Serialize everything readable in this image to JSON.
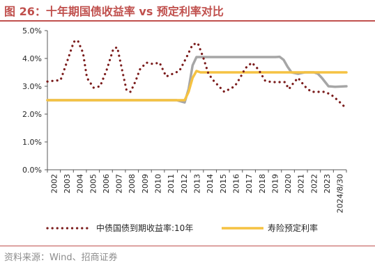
{
  "title": "图 26：十年期国债收益率 vs 预定利率对比",
  "source": "资料来源：Wind、招商证券",
  "chart_data": {
    "type": "line",
    "ylim": [
      0,
      5
    ],
    "yticks": [
      "0.0%",
      "1.0%",
      "2.0%",
      "3.0%",
      "4.0%",
      "5.0%"
    ],
    "xlim": [
      2002,
      2024.66
    ],
    "xticks": [
      "2002",
      "2003",
      "2004",
      "2005",
      "2006",
      "2007",
      "2008",
      "2009",
      "2010",
      "2011",
      "2012",
      "2013",
      "2014",
      "2015",
      "2016",
      "2017",
      "2018",
      "2019",
      "2020",
      "2021",
      "2022",
      "2023",
      "2024/8/30"
    ],
    "grid": false,
    "legend_position": "bottom",
    "colors": {
      "bond": "#7b1c1c",
      "rate": "#f5c242",
      "third": "#a6a6a6"
    },
    "series": [
      {
        "name": "中债国债到期收益率:10年",
        "style": "dotted",
        "x": [
          2002,
          2002.5,
          2003,
          2003.5,
          2004,
          2004.3,
          2004.7,
          2005,
          2005.5,
          2006,
          2006.5,
          2007,
          2007.3,
          2007.7,
          2008,
          2008.3,
          2008.7,
          2009,
          2009.5,
          2010,
          2010.5,
          2011,
          2011.5,
          2012,
          2012.5,
          2013,
          2013.4,
          2013.8,
          2014.2,
          2014.6,
          2015,
          2015.4,
          2015.8,
          2016.2,
          2016.6,
          2017,
          2017.5,
          2018,
          2018.5,
          2019,
          2019.5,
          2020,
          2020.3,
          2020.7,
          2021,
          2021.5,
          2022,
          2022.5,
          2023,
          2023.5,
          2024,
          2024.66
        ],
        "values": [
          3.17,
          3.2,
          3.22,
          3.9,
          4.6,
          4.65,
          4.2,
          3.3,
          2.95,
          3.0,
          3.6,
          4.35,
          4.4,
          3.5,
          2.85,
          2.8,
          3.2,
          3.6,
          3.85,
          3.8,
          3.85,
          3.35,
          3.45,
          3.55,
          4.0,
          4.5,
          4.55,
          4.05,
          3.45,
          3.2,
          3.0,
          2.8,
          2.9,
          3.0,
          3.3,
          3.65,
          3.85,
          3.6,
          3.2,
          3.15,
          3.15,
          3.15,
          2.9,
          3.15,
          3.3,
          3.0,
          2.8,
          2.8,
          2.8,
          2.7,
          2.5,
          2.2
        ]
      },
      {
        "name": "寿险预定利率",
        "style": "solid",
        "x": [
          2002,
          2012,
          2012.4,
          2012.7,
          2013,
          2013.3,
          2013.6,
          2020.1,
          2020.4,
          2024.66
        ],
        "values": [
          2.5,
          2.5,
          2.5,
          2.8,
          3.3,
          3.55,
          3.5,
          3.5,
          3.5,
          3.5
        ]
      },
      {
        "style": "solid",
        "x": [
          2002,
          2011.8,
          2012.4,
          2012.7,
          2013,
          2013.3,
          2013.6,
          2019.3,
          2019.6,
          2019.9,
          2020.2,
          2020.5,
          2021,
          2021.5,
          2022.2,
          2022.5,
          2022.8,
          2023.3,
          2023.8,
          2024.66
        ],
        "values": [
          2.5,
          2.5,
          2.42,
          2.9,
          3.75,
          4.05,
          4.05,
          4.05,
          4.06,
          3.95,
          3.7,
          3.5,
          3.45,
          3.5,
          3.5,
          3.45,
          3.3,
          3.0,
          2.98,
          3.0
        ]
      }
    ]
  }
}
